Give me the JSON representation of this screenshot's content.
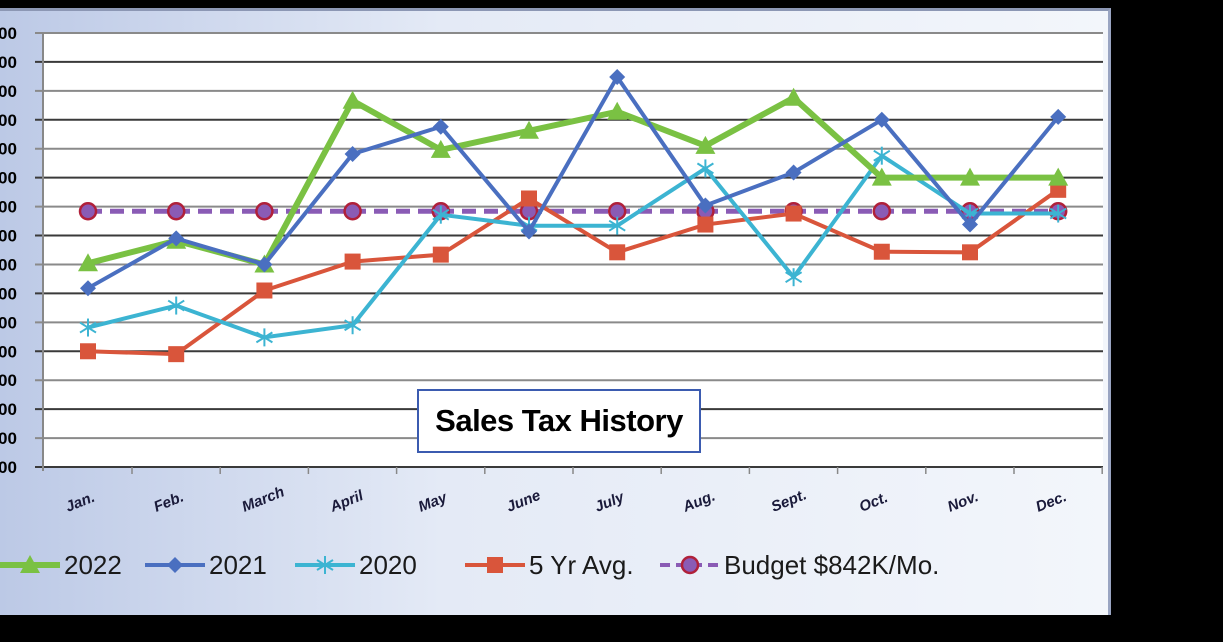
{
  "chart_data": {
    "type": "line",
    "title": "Sales Tax History",
    "xlabel": "",
    "ylabel": "",
    "categories": [
      "Jan.",
      "Feb.",
      "March",
      "April",
      "May",
      "June",
      "July",
      "Aug.",
      "Sept.",
      "Oct.",
      "Nov.",
      "Dec."
    ],
    "ylim": [
      400000,
      1150000
    ],
    "y_tick_labels": [
      "00",
      "00",
      "00",
      "00",
      "00",
      "00",
      "00",
      "00",
      "00",
      "00",
      "00",
      "00",
      "00",
      "00",
      "00",
      "00"
    ],
    "grid": true,
    "legend_position": "bottom",
    "series": [
      {
        "name": "2022",
        "color": "#7ac143",
        "marker": "triangle",
        "dashed": false,
        "values": [
          752000,
          791000,
          750000,
          1033000,
          948000,
          981000,
          1014000,
          955000,
          1038000,
          900000,
          900000,
          900000
        ]
      },
      {
        "name": "2021",
        "color": "#4a6fc0",
        "marker": "diamond",
        "dashed": false,
        "values": [
          709000,
          795000,
          750000,
          941000,
          988000,
          807000,
          1074000,
          852000,
          909000,
          1000000,
          819000,
          1005000
        ]
      },
      {
        "name": "2020",
        "color": "#3cb4d2",
        "marker": "asterisk",
        "dashed": false,
        "values": [
          641000,
          679000,
          624000,
          645000,
          836000,
          817000,
          817000,
          916000,
          728000,
          938000,
          838000,
          838000
        ]
      },
      {
        "name": "5 Yr Avg.",
        "color": "#d9553b",
        "marker": "square",
        "dashed": false,
        "values": [
          600000,
          595000,
          705000,
          755000,
          767000,
          864000,
          771000,
          819000,
          838000,
          772000,
          771000,
          879000
        ]
      },
      {
        "name": "Budget $842K/Mo.",
        "color": "#8a5bb5",
        "marker": "circle",
        "dashed": true,
        "values": [
          842000,
          842000,
          842000,
          842000,
          842000,
          842000,
          842000,
          842000,
          842000,
          842000,
          842000,
          842000
        ]
      }
    ]
  }
}
